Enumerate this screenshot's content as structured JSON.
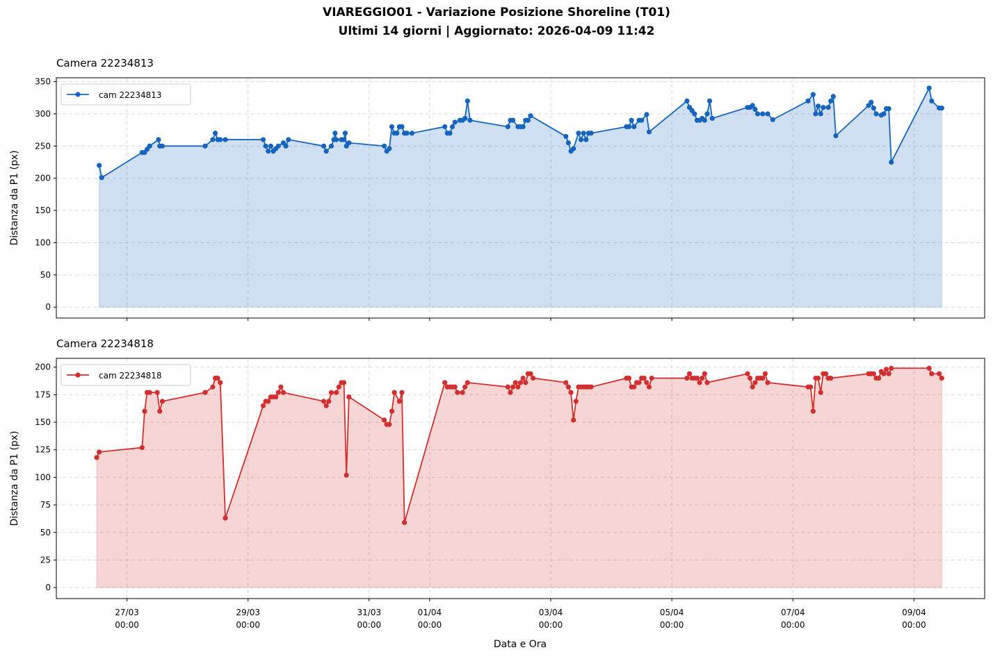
{
  "title": [
    "VIAREGGIO01 - Variazione Posizione Shoreline (T01)",
    "Ultimi 14 giorni  |  Aggiornato: 2026-04-09 11:42"
  ],
  "xlabel": "Data e Ora",
  "chart_data": [
    {
      "type": "line",
      "title": "Camera 22234813",
      "ylabel": "Distanza da P1 (px)",
      "fill": true,
      "grid": true,
      "legend": "upper left",
      "xlim": [
        "25/03 20:00",
        "10/04 04:00"
      ],
      "ylim": [
        -17,
        356
      ],
      "yticks": [
        0,
        50,
        100,
        150,
        200,
        250,
        300,
        350
      ],
      "xticks": [
        "27/03 00:00",
        "29/03 00:00",
        "31/03 00:00",
        "01/04 00:00",
        "03/04 00:00",
        "05/04 00:00",
        "07/04 00:00",
        "09/04 00:00"
      ],
      "x": [
        "26/03 13:00",
        "26/03 14:00",
        "27/03 06:00",
        "27/03 07:00",
        "27/03 08:00",
        "27/03 09:00",
        "27/03 12:30",
        "27/03 13:00",
        "27/03 14:00",
        "28/03 07:00",
        "28/03 10:00",
        "28/03 11:00",
        "28/03 12:00",
        "28/03 13:00",
        "28/03 15:00",
        "29/03 06:00",
        "29/03 07:00",
        "29/03 08:00",
        "29/03 09:00",
        "29/03 10:00",
        "29/03 11:00",
        "29/03 12:00",
        "29/03 14:00",
        "29/03 15:00",
        "29/03 16:00",
        "30/03 06:00",
        "30/03 07:00",
        "30/03 09:00",
        "30/03 10:00",
        "30/03 10:30",
        "30/03 11:00",
        "30/03 13:00",
        "30/03 14:00",
        "30/03 14:30",
        "30/03 15:00",
        "30/03 16:00",
        "31/03 06:00",
        "31/03 07:00",
        "31/03 08:00",
        "31/03 09:00",
        "31/03 10:00",
        "31/03 11:00",
        "31/03 12:00",
        "31/03 13:00",
        "31/03 14:00",
        "31/03 15:00",
        "31/03 17:00",
        "01/04 06:00",
        "01/04 07:00",
        "01/04 08:00",
        "01/04 09:00",
        "01/04 10:00",
        "01/04 12:00",
        "01/04 13:00",
        "01/04 14:00",
        "01/04 15:00",
        "01/04 16:00",
        "02/04 07:00",
        "02/04 08:00",
        "02/04 09:00",
        "02/04 11:00",
        "02/04 12:00",
        "02/04 13:00",
        "02/04 14:00",
        "02/04 15:00",
        "02/04 16:00",
        "03/04 06:00",
        "03/04 07:00",
        "03/04 08:00",
        "03/04 09:00",
        "03/04 11:00",
        "03/04 12:00",
        "03/04 13:00",
        "03/04 14:00",
        "03/04 15:00",
        "03/04 16:00",
        "04/04 06:00",
        "04/04 07:00",
        "04/04 08:00",
        "04/04 09:00",
        "04/04 11:00",
        "04/04 12:00",
        "04/04 14:00",
        "04/04 15:00",
        "05/04 06:00",
        "05/04 07:00",
        "05/04 08:00",
        "05/04 09:00",
        "05/04 10:00",
        "05/04 11:00",
        "05/04 12:00",
        "05/04 13:00",
        "05/04 14:00",
        "05/04 15:00",
        "05/04 16:00",
        "06/04 06:00",
        "06/04 07:00",
        "06/04 08:00",
        "06/04 09:00",
        "06/04 10:00",
        "06/04 12:00",
        "06/04 14:00",
        "06/04 16:00",
        "07/04 06:00",
        "07/04 08:00",
        "07/04 09:00",
        "07/04 10:00",
        "07/04 11:00",
        "07/04 12:00",
        "07/04 14:00",
        "07/04 15:00",
        "07/04 16:00",
        "07/04 17:00",
        "08/04 06:00",
        "08/04 07:00",
        "08/04 08:00",
        "08/04 09:00",
        "08/04 11:00",
        "08/04 12:00",
        "08/04 13:00",
        "08/04 14:00",
        "08/04 15:00",
        "09/04 06:00",
        "09/04 07:00",
        "09/04 10:00",
        "09/04 11:00"
      ],
      "series": [
        {
          "name": "cam 22234813",
          "color": "#1565c0",
          "values": [
            220,
            201,
            240,
            240,
            245,
            250,
            260,
            250,
            250,
            250,
            260,
            270,
            260,
            260,
            260,
            260,
            250,
            242,
            250,
            242,
            246,
            250,
            255,
            250,
            260,
            250,
            242,
            250,
            260,
            270,
            260,
            260,
            260,
            270,
            250,
            255,
            250,
            242,
            246,
            280,
            270,
            270,
            280,
            280,
            270,
            270,
            270,
            280,
            270,
            270,
            280,
            287,
            290,
            290,
            293,
            320,
            290,
            280,
            290,
            290,
            280,
            280,
            280,
            290,
            290,
            297,
            265,
            255,
            242,
            246,
            270,
            260,
            270,
            260,
            270,
            270,
            280,
            280,
            290,
            280,
            290,
            290,
            299,
            272,
            320,
            310,
            305,
            300,
            290,
            290,
            293,
            290,
            300,
            320,
            293,
            310,
            310,
            313,
            307,
            300,
            300,
            300,
            291,
            320,
            330,
            300,
            312,
            300,
            310,
            310,
            320,
            327,
            266,
            313,
            318,
            309,
            300,
            298,
            300,
            308,
            308,
            225,
            340,
            320,
            309,
            309
          ]
        }
      ]
    },
    {
      "type": "line",
      "title": "Camera 22234818",
      "ylabel": "Distanza da P1 (px)",
      "fill": true,
      "grid": true,
      "legend": "upper left",
      "xlim": [
        "25/03 20:00",
        "10/04 04:00"
      ],
      "ylim": [
        -10,
        208
      ],
      "yticks": [
        0,
        25,
        50,
        75,
        100,
        125,
        150,
        175,
        200
      ],
      "xticks": [
        "27/03 00:00",
        "29/03 00:00",
        "31/03 00:00",
        "01/04 00:00",
        "03/04 00:00",
        "05/04 00:00",
        "07/04 00:00",
        "09/04 00:00"
      ],
      "x": [
        "26/03 12:00",
        "26/03 13:00",
        "27/03 06:00",
        "27/03 07:00",
        "27/03 08:00",
        "27/03 09:00",
        "27/03 12:00",
        "27/03 13:00",
        "27/03 14:00",
        "28/03 07:00",
        "28/03 10:00",
        "28/03 11:00",
        "28/03 12:00",
        "28/03 13:00",
        "28/03 15:00",
        "29/03 06:00",
        "29/03 07:00",
        "29/03 08:00",
        "29/03 09:00",
        "29/03 10:00",
        "29/03 11:00",
        "29/03 12:00",
        "29/03 13:00",
        "29/03 14:00",
        "30/03 06:00",
        "30/03 07:00",
        "30/03 08:00",
        "30/03 09:00",
        "30/03 11:00",
        "30/03 12:00",
        "30/03 13:00",
        "30/03 14:00",
        "30/03 15:00",
        "30/03 16:00",
        "31/03 06:00",
        "31/03 07:00",
        "31/03 08:00",
        "31/03 09:00",
        "31/03 10:00",
        "31/03 12:00",
        "31/03 13:00",
        "31/03 14:00",
        "01/04 06:00",
        "01/04 07:00",
        "01/04 08:00",
        "01/04 09:00",
        "01/04 10:00",
        "01/04 11:00",
        "01/04 13:00",
        "01/04 14:00",
        "01/04 15:00",
        "02/04 07:00",
        "02/04 08:00",
        "02/04 09:00",
        "02/04 10:00",
        "02/04 11:00",
        "02/04 12:00",
        "02/04 13:00",
        "02/04 14:00",
        "02/04 15:00",
        "02/04 16:00",
        "02/04 17:00",
        "03/04 06:00",
        "03/04 07:00",
        "03/04 08:00",
        "03/04 09:00",
        "03/04 10:00",
        "03/04 11:00",
        "03/04 12:00",
        "03/04 13:00",
        "03/04 14:00",
        "03/04 15:00",
        "03/04 16:00",
        "04/04 06:00",
        "04/04 07:00",
        "04/04 08:00",
        "04/04 09:00",
        "04/04 10:00",
        "04/04 11:00",
        "04/04 12:00",
        "04/04 13:00",
        "04/04 14:00",
        "04/04 15:00",
        "04/04 16:00",
        "05/04 06:00",
        "05/04 07:00",
        "05/04 08:00",
        "05/04 09:00",
        "05/04 10:00",
        "05/04 11:00",
        "05/04 12:00",
        "05/04 13:00",
        "05/04 14:00",
        "06/04 06:00",
        "06/04 07:00",
        "06/04 08:00",
        "06/04 09:00",
        "06/04 10:00",
        "06/04 11:00",
        "06/04 12:00",
        "06/04 13:00",
        "06/04 14:00",
        "07/04 06:00",
        "07/04 07:00",
        "07/04 08:00",
        "07/04 09:00",
        "07/04 10:00",
        "07/04 11:00",
        "07/04 12:00",
        "07/04 13:00",
        "07/04 14:00",
        "07/04 15:00",
        "08/04 06:00",
        "08/04 07:00",
        "08/04 08:00",
        "08/04 09:00",
        "08/04 10:00",
        "08/04 11:00",
        "08/04 12:00",
        "08/04 13:00",
        "08/04 14:00",
        "08/04 15:00",
        "09/04 06:00",
        "09/04 07:00",
        "09/04 10:00",
        "09/04 11:00"
      ],
      "series": [
        {
          "name": "cam 22234818",
          "color": "#d32f2f",
          "values": [
            118,
            123,
            127,
            160,
            177,
            177,
            177,
            160,
            169,
            177,
            182,
            190,
            190,
            186,
            63,
            165,
            169,
            169,
            173,
            173,
            173,
            177,
            182,
            177,
            169,
            165,
            169,
            177,
            177,
            182,
            186,
            186,
            102,
            173,
            152,
            148,
            148,
            160,
            177,
            169,
            177,
            59,
            186,
            182,
            182,
            182,
            182,
            177,
            177,
            182,
            186,
            182,
            177,
            182,
            186,
            182,
            186,
            190,
            186,
            194,
            194,
            190,
            186,
            182,
            177,
            152,
            169,
            182,
            182,
            182,
            182,
            182,
            182,
            190,
            190,
            182,
            182,
            186,
            186,
            190,
            190,
            186,
            182,
            190,
            190,
            194,
            190,
            190,
            190,
            186,
            190,
            194,
            186,
            194,
            190,
            182,
            186,
            190,
            190,
            190,
            194,
            186,
            182,
            182,
            160,
            190,
            190,
            177,
            194,
            194,
            190,
            190,
            194,
            194,
            194,
            190,
            190,
            196,
            194,
            198,
            194,
            199,
            199,
            194,
            194,
            190
          ]
        }
      ]
    }
  ]
}
